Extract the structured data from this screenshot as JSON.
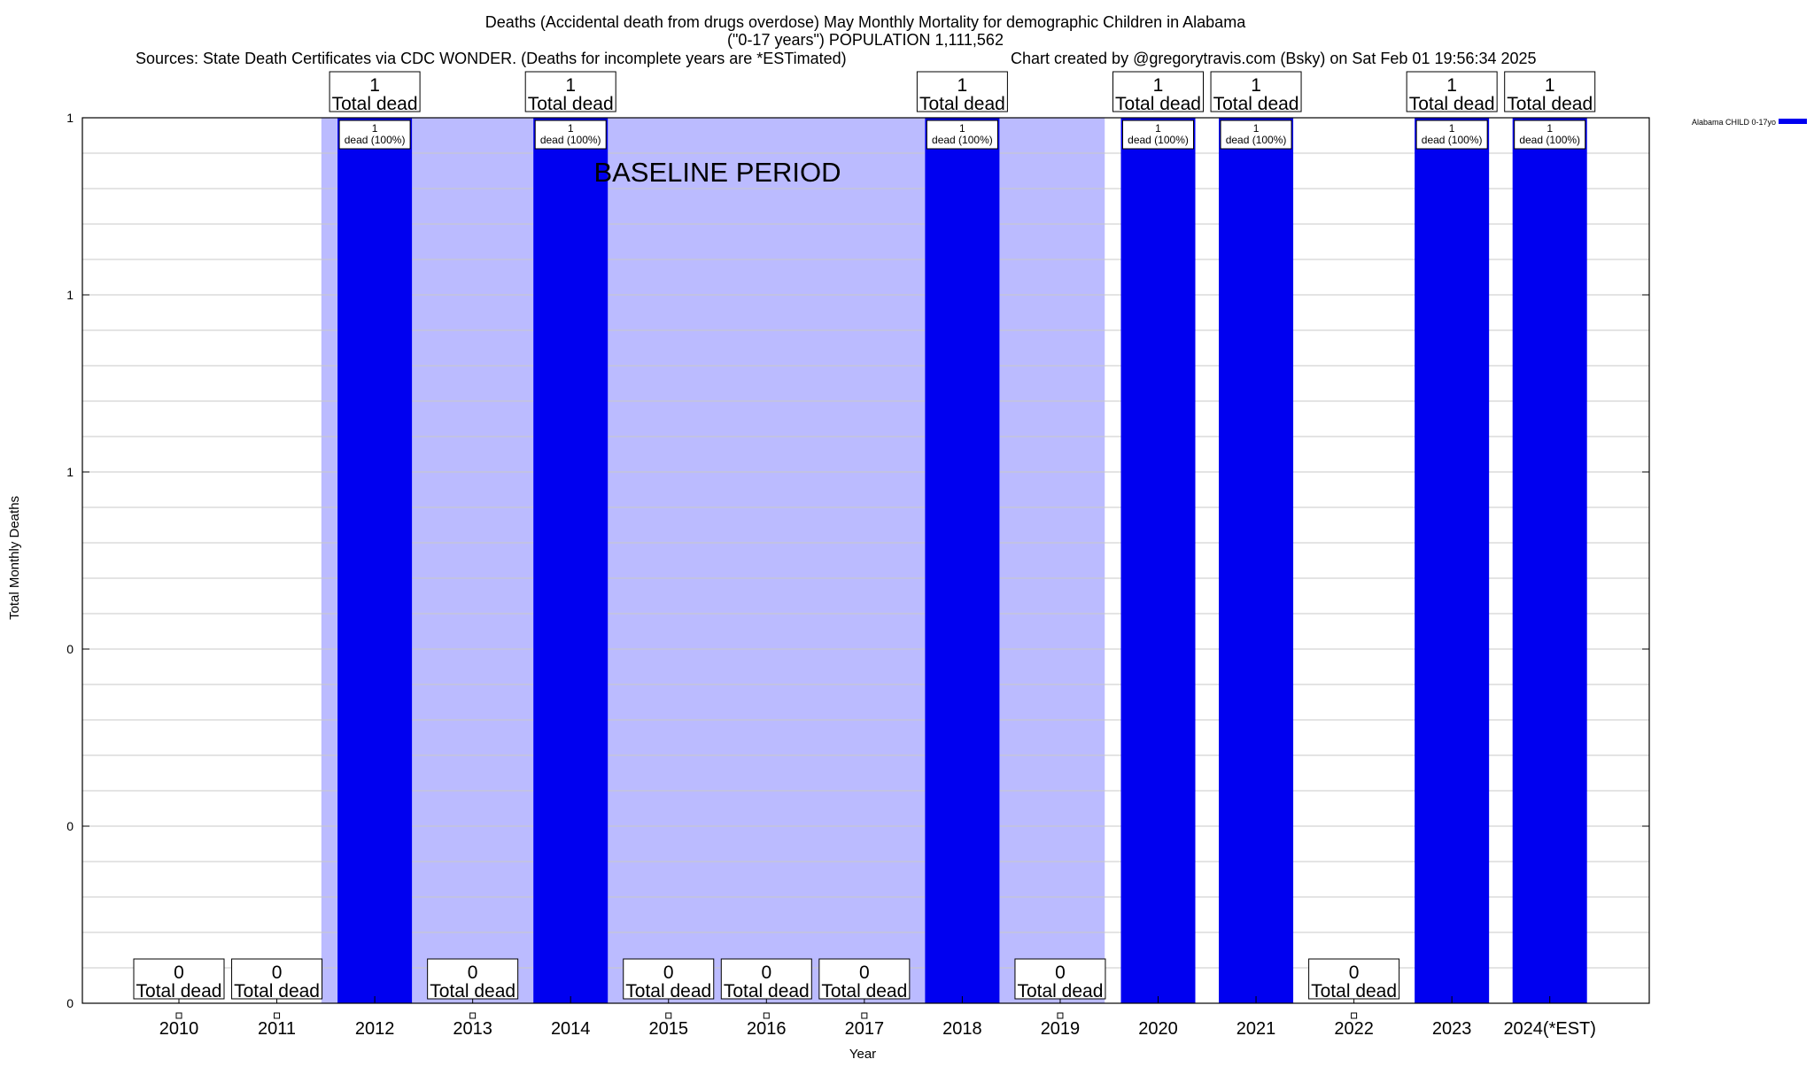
{
  "chart_data": {
    "type": "bar",
    "title_lines": [
      "Deaths (Accidental death from drugs overdose) May Monthly Mortality for demographic Children in Alabama",
      "(\"0-17 years\") POPULATION 1,111,562"
    ],
    "source_note": "Sources: State Death Certificates via CDC WONDER. (Deaths for incomplete years are *ESTimated)",
    "credit_note": "Chart created by @gregorytravis.com (Bsky) on Sat Feb 01 19:56:34 2025",
    "xlabel": "Year",
    "ylabel": "Total Monthly Deaths",
    "categories": [
      "2010",
      "2011",
      "2012",
      "2013",
      "2014",
      "2015",
      "2016",
      "2017",
      "2018",
      "2019",
      "2020",
      "2021",
      "2022",
      "2023",
      "2024(*EST)"
    ],
    "series": [
      {
        "name": "Alabama CHILD 0-17yo",
        "color": "#0000f0",
        "values": [
          0,
          0,
          1,
          0,
          1,
          0,
          0,
          0,
          1,
          0,
          1,
          1,
          0,
          1,
          1
        ]
      }
    ],
    "total_labels": [
      "0\nTotal dead",
      "0\nTotal dead",
      "1\nTotal dead",
      "0\nTotal dead",
      "1\nTotal dead",
      "0\nTotal dead",
      "0\nTotal dead",
      "0\nTotal dead",
      "1\nTotal dead",
      "0\nTotal dead",
      "1\nTotal dead",
      "1\nTotal dead",
      "0\nTotal dead",
      "1\nTotal dead",
      "1\nTotal dead"
    ],
    "inner_labels": [
      "",
      "",
      "1\ndead (100%)",
      "",
      "1\ndead (100%)",
      "",
      "",
      "",
      "1\ndead (100%)",
      "",
      "1\ndead (100%)",
      "1\ndead (100%)",
      "",
      "1\ndead (100%)",
      "1\ndead (100%)"
    ],
    "yticks": [
      {
        "value": 0,
        "label": "0"
      },
      {
        "value": 0.2,
        "label": "0"
      },
      {
        "value": 0.4,
        "label": "0"
      },
      {
        "value": 0.6,
        "label": "1"
      },
      {
        "value": 0.8,
        "label": "1"
      },
      {
        "value": 1.0,
        "label": "1"
      }
    ],
    "ylim": [
      0,
      1
    ],
    "grid": true,
    "legend_position": "top-right",
    "baseline_period": {
      "label": "BASELINE PERIOD",
      "start_category": "2012",
      "end_category": "2019",
      "color": "#bbbbff"
    },
    "zero_marker_color": "#ffffff"
  }
}
